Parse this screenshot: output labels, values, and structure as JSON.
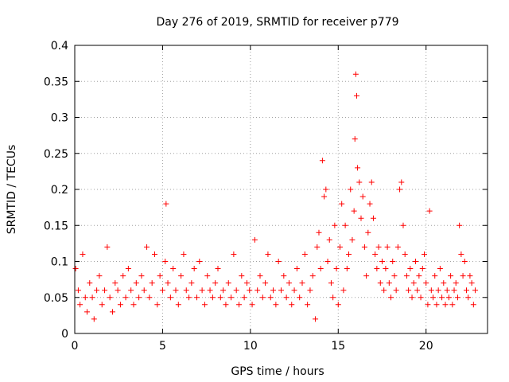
{
  "chart_data": {
    "type": "scatter",
    "title": "Day 276 of 2019, SRMTID for receiver p779",
    "xlabel": "GPS time / hours",
    "ylabel": "SRMTID / TECUs",
    "xlim": [
      0,
      23.5
    ],
    "ylim": [
      0,
      0.4
    ],
    "x_ticks": [
      0,
      5,
      10,
      15,
      20
    ],
    "x_tick_labels": [
      "0",
      "5",
      "10",
      "15",
      "20"
    ],
    "y_ticks": [
      0,
      0.05,
      0.1,
      0.15,
      0.2,
      0.25,
      0.3,
      0.35,
      0.4
    ],
    "y_tick_labels": [
      "0",
      "0.05",
      "0.1",
      "0.15",
      "0.2",
      "0.25",
      "0.3",
      "0.35",
      "0.4"
    ],
    "grid": true,
    "marker": "+",
    "series_color": "#ff0000",
    "series": [
      {
        "name": "SRMTID",
        "x": [
          0.05,
          0.2,
          0.3,
          0.45,
          0.6,
          0.7,
          0.85,
          1.0,
          1.1,
          1.25,
          1.4,
          1.55,
          1.7,
          1.85,
          2.0,
          2.15,
          2.3,
          2.45,
          2.6,
          2.75,
          2.9,
          3.05,
          3.2,
          3.35,
          3.5,
          3.65,
          3.8,
          3.95,
          4.1,
          4.25,
          4.4,
          4.55,
          4.7,
          4.85,
          5.0,
          5.15,
          5.2,
          5.3,
          5.45,
          5.6,
          5.75,
          5.9,
          6.05,
          6.2,
          6.35,
          6.5,
          6.65,
          6.8,
          6.95,
          7.1,
          7.25,
          7.4,
          7.55,
          7.7,
          7.85,
          8.0,
          8.15,
          8.3,
          8.45,
          8.6,
          8.75,
          8.9,
          9.05,
          9.2,
          9.35,
          9.5,
          9.65,
          9.8,
          9.95,
          10.1,
          10.25,
          10.4,
          10.55,
          10.7,
          10.85,
          11.0,
          11.15,
          11.3,
          11.45,
          11.6,
          11.75,
          11.9,
          12.05,
          12.2,
          12.35,
          12.5,
          12.65,
          12.8,
          12.95,
          13.1,
          13.25,
          13.4,
          13.55,
          13.7,
          13.8,
          13.9,
          14.0,
          14.1,
          14.2,
          14.3,
          14.4,
          14.5,
          14.6,
          14.7,
          14.8,
          14.9,
          15.0,
          15.1,
          15.2,
          15.3,
          15.4,
          15.5,
          15.6,
          15.7,
          15.8,
          15.9,
          15.95,
          16.0,
          16.05,
          16.1,
          16.2,
          16.3,
          16.4,
          16.5,
          16.6,
          16.7,
          16.8,
          16.9,
          17.0,
          17.1,
          17.2,
          17.3,
          17.4,
          17.5,
          17.6,
          17.7,
          17.8,
          17.9,
          18.0,
          18.1,
          18.2,
          18.3,
          18.4,
          18.5,
          18.6,
          18.7,
          18.8,
          18.9,
          19.0,
          19.1,
          19.2,
          19.3,
          19.4,
          19.5,
          19.6,
          19.7,
          19.8,
          19.9,
          20.0,
          20.1,
          20.2,
          20.3,
          20.4,
          20.5,
          20.6,
          20.7,
          20.8,
          20.9,
          21.0,
          21.1,
          21.2,
          21.3,
          21.4,
          21.5,
          21.6,
          21.7,
          21.8,
          21.9,
          22.0,
          22.1,
          22.2,
          22.3,
          22.4,
          22.5,
          22.6,
          22.7,
          22.8
        ],
        "y": [
          0.09,
          0.06,
          0.04,
          0.11,
          0.05,
          0.03,
          0.07,
          0.05,
          0.02,
          0.06,
          0.08,
          0.04,
          0.06,
          0.12,
          0.05,
          0.03,
          0.07,
          0.06,
          0.04,
          0.08,
          0.05,
          0.09,
          0.06,
          0.04,
          0.07,
          0.05,
          0.08,
          0.06,
          0.12,
          0.05,
          0.07,
          0.11,
          0.04,
          0.08,
          0.06,
          0.1,
          0.18,
          0.07,
          0.05,
          0.09,
          0.06,
          0.04,
          0.08,
          0.11,
          0.06,
          0.05,
          0.07,
          0.09,
          0.05,
          0.1,
          0.06,
          0.04,
          0.08,
          0.06,
          0.05,
          0.07,
          0.09,
          0.05,
          0.06,
          0.04,
          0.07,
          0.05,
          0.11,
          0.06,
          0.04,
          0.08,
          0.05,
          0.07,
          0.06,
          0.04,
          0.13,
          0.06,
          0.08,
          0.05,
          0.07,
          0.11,
          0.05,
          0.06,
          0.04,
          0.1,
          0.06,
          0.08,
          0.05,
          0.07,
          0.04,
          0.06,
          0.09,
          0.05,
          0.07,
          0.11,
          0.04,
          0.06,
          0.08,
          0.02,
          0.12,
          0.14,
          0.09,
          0.24,
          0.19,
          0.2,
          0.1,
          0.13,
          0.07,
          0.05,
          0.15,
          0.09,
          0.04,
          0.12,
          0.18,
          0.06,
          0.15,
          0.09,
          0.11,
          0.2,
          0.13,
          0.17,
          0.27,
          0.36,
          0.33,
          0.23,
          0.21,
          0.16,
          0.19,
          0.12,
          0.08,
          0.14,
          0.18,
          0.21,
          0.16,
          0.11,
          0.09,
          0.12,
          0.07,
          0.1,
          0.06,
          0.09,
          0.12,
          0.07,
          0.05,
          0.1,
          0.08,
          0.06,
          0.12,
          0.2,
          0.21,
          0.15,
          0.11,
          0.08,
          0.06,
          0.09,
          0.05,
          0.07,
          0.1,
          0.06,
          0.08,
          0.05,
          0.09,
          0.11,
          0.07,
          0.04,
          0.17,
          0.06,
          0.05,
          0.08,
          0.04,
          0.06,
          0.09,
          0.05,
          0.07,
          0.04,
          0.06,
          0.05,
          0.08,
          0.04,
          0.06,
          0.07,
          0.05,
          0.15,
          0.11,
          0.08,
          0.1,
          0.06,
          0.05,
          0.08,
          0.07,
          0.04,
          0.06
        ]
      }
    ]
  }
}
